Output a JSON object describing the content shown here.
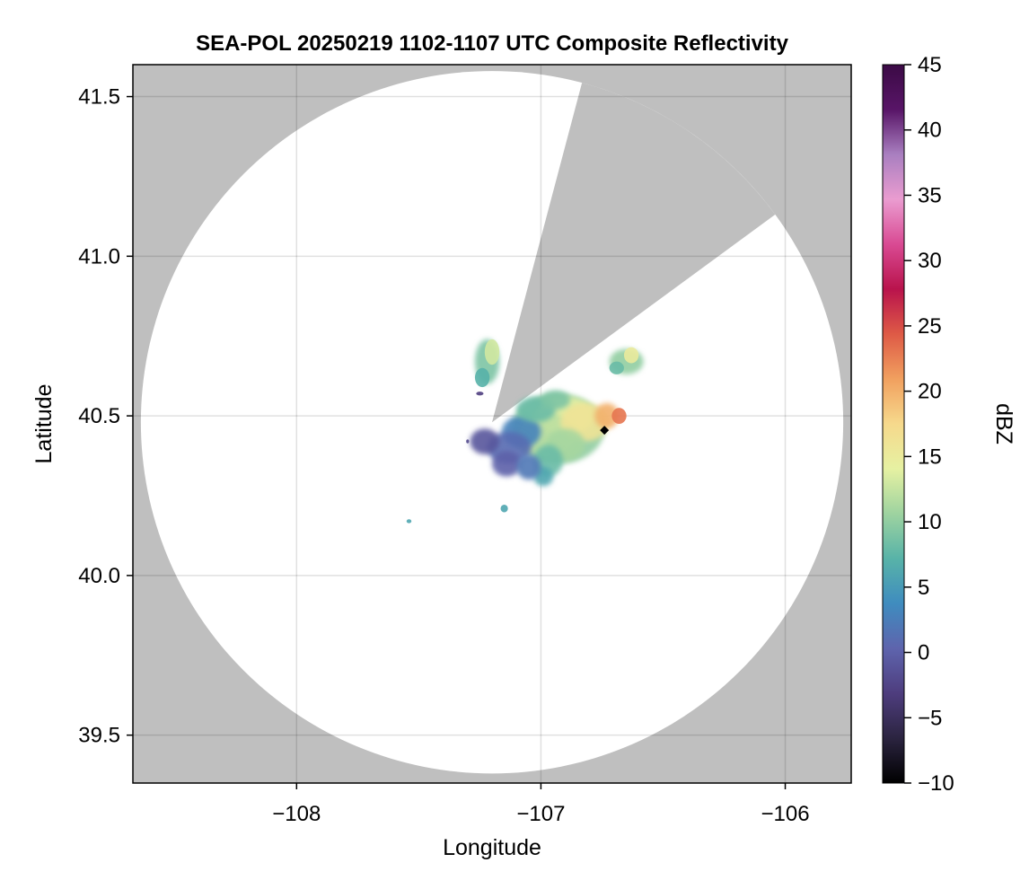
{
  "chart_data": {
    "type": "heatmap",
    "title": "SEA-POL 20250219 1102-1107 UTC Composite Reflectivity",
    "xlabel": "Longitude",
    "ylabel": "Latitude",
    "xlim": [
      -108.67,
      -105.73
    ],
    "ylim": [
      39.35,
      41.6
    ],
    "xticks": [
      -108,
      -107,
      -106
    ],
    "xtick_labels": [
      "−108",
      "−107",
      "−106"
    ],
    "yticks": [
      39.5,
      40.0,
      40.5,
      41.0,
      41.5
    ],
    "ytick_labels": [
      "39.5",
      "40.0",
      "40.5",
      "41.0",
      "41.5"
    ],
    "grid": true,
    "radar_center": [
      -107.2,
      40.48
    ],
    "radar_range_deg_lat": 1.1,
    "blocked_sectors": [
      {
        "from_lon": -107.2,
        "from_lat": 40.48,
        "edge1": [
          -106.84,
          41.52
        ],
        "edge2": [
          -106.06,
          41.12
        ]
      }
    ],
    "no_coverage_color": "#bfbfbf",
    "marker": {
      "lon": -106.74,
      "lat": 40.455,
      "shape": "diamond",
      "color": "#000000"
    },
    "echo_regions": [
      {
        "lon": -106.92,
        "lat": 40.47,
        "peak_dbz": 20
      },
      {
        "lon": -106.7,
        "lat": 40.5,
        "peak_dbz": 22
      },
      {
        "lon": -107.12,
        "lat": 40.38,
        "peak_dbz": 0
      },
      {
        "lon": -107.22,
        "lat": 40.67,
        "peak_dbz": 12
      },
      {
        "lon": -106.65,
        "lat": 40.67,
        "peak_dbz": 14
      },
      {
        "lon": -107.15,
        "lat": 40.21,
        "peak_dbz": 6
      },
      {
        "lon": -107.53,
        "lat": 40.17,
        "peak_dbz": 6
      }
    ],
    "colorbar": {
      "label": "dBZ",
      "min": -10,
      "max": 45,
      "ticks": [
        -10,
        -5,
        0,
        5,
        10,
        15,
        20,
        25,
        30,
        35,
        40,
        45
      ],
      "tick_labels": [
        "−10",
        "−5",
        "0",
        "5",
        "10",
        "15",
        "20",
        "25",
        "30",
        "35",
        "40",
        "45"
      ],
      "stops": [
        "#000000",
        "#2b2440",
        "#4e3d7e",
        "#5e64ad",
        "#3f8cbf",
        "#58b3a8",
        "#9ed3a0",
        "#e6f1a2",
        "#f6d98c",
        "#f1a05f",
        "#de5a46",
        "#b9134c",
        "#d94a93",
        "#ea9cd0",
        "#a97fc0",
        "#581567",
        "#3b0a45"
      ]
    }
  }
}
